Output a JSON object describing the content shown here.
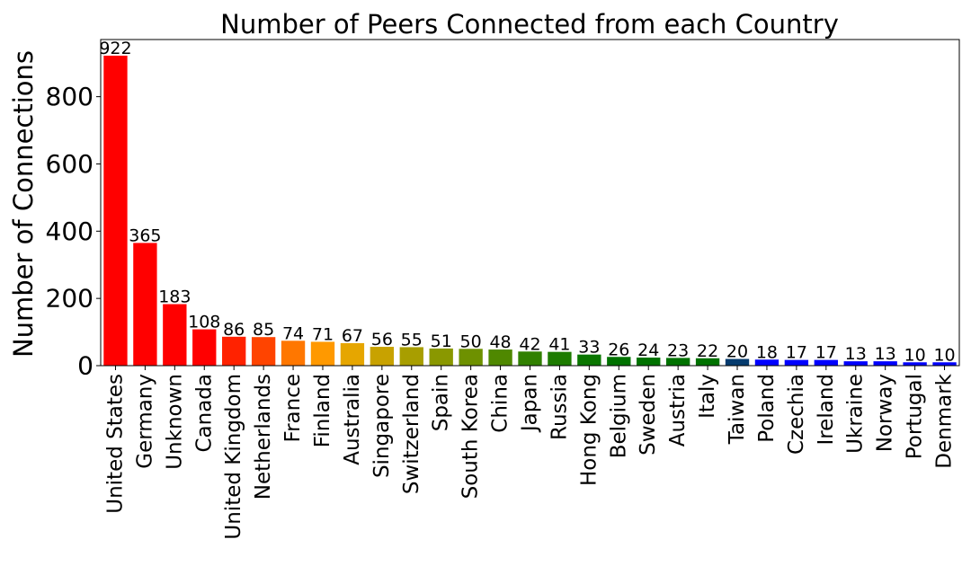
{
  "chart_data": {
    "type": "bar",
    "title": "Number of Peers Connected from each Country",
    "xlabel": "",
    "ylabel": "Number of Connections",
    "ylim": [
      0,
      970
    ],
    "yticks": [
      "0",
      "200",
      "400",
      "600",
      "800"
    ],
    "grid": false,
    "categories": [
      "United States",
      "Germany",
      "Unknown",
      "Canada",
      "United Kingdom",
      "Netherlands",
      "France",
      "Finland",
      "Australia",
      "Singapore",
      "Switzerland",
      "Spain",
      "South Korea",
      "China",
      "Japan",
      "Russia",
      "Hong Kong",
      "Belgium",
      "Sweden",
      "Austria",
      "Italy",
      "Taiwan",
      "Poland",
      "Czechia",
      "Ireland",
      "Ukraine",
      "Norway",
      "Portugal",
      "Denmark"
    ],
    "values": [
      922,
      365,
      183,
      108,
      86,
      85,
      74,
      71,
      67,
      56,
      55,
      51,
      50,
      48,
      42,
      41,
      33,
      26,
      24,
      23,
      22,
      20,
      18,
      17,
      17,
      13,
      13,
      10,
      10
    ],
    "colors": [
      "#ff0000",
      "#ff0000",
      "#ff0000",
      "#ff0000",
      "#ff2200",
      "#ff4400",
      "#ff7700",
      "#ff9900",
      "#e6a600",
      "#c8a200",
      "#a89e00",
      "#8a9800",
      "#6e9100",
      "#4f8800",
      "#318000",
      "#1d7b00",
      "#0a7600",
      "#007200",
      "#007200",
      "#007200",
      "#007200",
      "#053b6e",
      "#0000ff",
      "#0000ff",
      "#0000ff",
      "#0000ff",
      "#0000ff",
      "#0000ff",
      "#0000ff"
    ]
  }
}
